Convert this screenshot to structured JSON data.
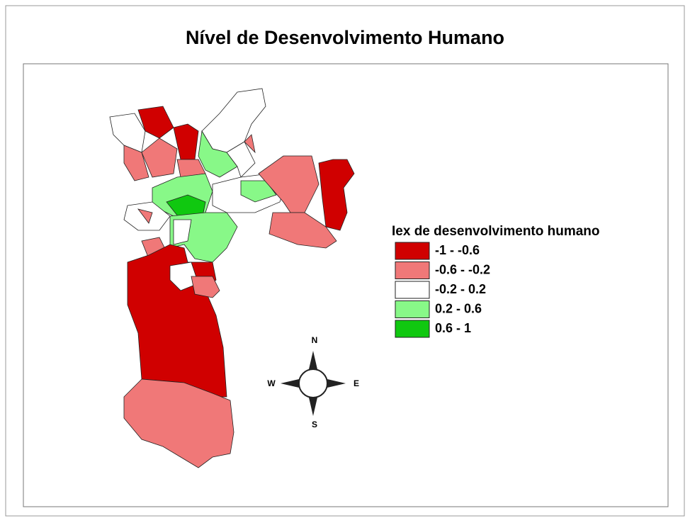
{
  "title": "Nível de Desenvolvimento Humano",
  "legend": {
    "title": "Iex de desenvolvimento humano",
    "items": [
      {
        "label": "-1 - -0.6",
        "color": "#d00000"
      },
      {
        "label": "-0.6 - -0.2",
        "color": "#f07878"
      },
      {
        "label": "-0.2 - 0.2",
        "color": "#ffffff"
      },
      {
        "label": "0.2 - 0.6",
        "color": "#88f888"
      },
      {
        "label": "0.6 - 1",
        "color": "#10c810"
      }
    ]
  },
  "compass": {
    "north": "N",
    "south": "S",
    "east": "E",
    "west": "W"
  }
}
